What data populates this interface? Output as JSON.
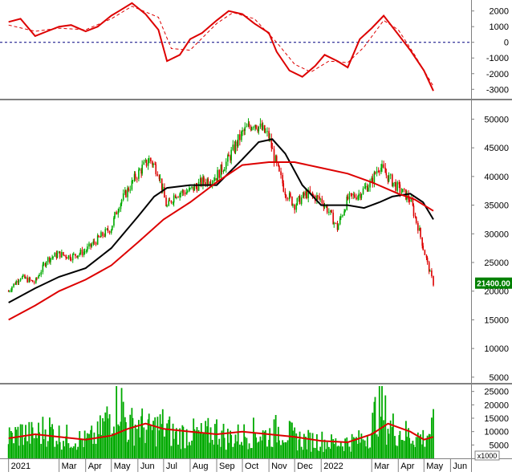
{
  "chart_data": [
    {
      "id": "oscillator",
      "type": "line",
      "title": "",
      "ylim": [
        -3600,
        2700
      ],
      "yticks": [
        2000,
        1000,
        0,
        -1000,
        -2000,
        -3000
      ],
      "zero_line": "dashed",
      "series": [
        {
          "style": "solid",
          "color": "#dd0000",
          "x": [
            "2021-01-01",
            "2021-01-15",
            "2021-02-01",
            "2021-02-15",
            "2021-03-01",
            "2021-03-15",
            "2021-04-01",
            "2021-04-15",
            "2021-05-01",
            "2021-05-10",
            "2021-05-25",
            "2021-06-10",
            "2021-06-25",
            "2021-07-05",
            "2021-07-20",
            "2021-08-01",
            "2021-08-15",
            "2021-09-01",
            "2021-09-15",
            "2021-10-01",
            "2021-10-15",
            "2021-11-01",
            "2021-11-10",
            "2021-11-25",
            "2021-12-10",
            "2021-12-25",
            "2022-01-05",
            "2022-01-20",
            "2022-02-01",
            "2022-02-15",
            "2022-03-01",
            "2022-03-15",
            "2022-04-01",
            "2022-04-15",
            "2022-05-01",
            "2022-05-12"
          ],
          "values": [
            1300,
            1500,
            400,
            700,
            1000,
            1100,
            700,
            1000,
            1700,
            2000,
            2500,
            1800,
            800,
            -1200,
            -800,
            200,
            600,
            1400,
            2000,
            1800,
            1200,
            600,
            -600,
            -1800,
            -2200,
            -1500,
            -800,
            -1200,
            -1600,
            200,
            900,
            1700,
            500,
            -500,
            -1800,
            -3100
          ]
        },
        {
          "style": "dashed",
          "color": "#dd0000",
          "x": [
            "2021-01-01",
            "2021-02-01",
            "2021-03-01",
            "2021-04-01",
            "2021-05-01",
            "2021-05-25",
            "2021-06-25",
            "2021-07-10",
            "2021-08-01",
            "2021-09-01",
            "2021-09-20",
            "2021-10-15",
            "2021-11-10",
            "2021-12-01",
            "2021-12-20",
            "2022-01-10",
            "2022-02-01",
            "2022-02-20",
            "2022-03-15",
            "2022-04-01",
            "2022-04-20",
            "2022-05-12"
          ],
          "values": [
            1100,
            700,
            900,
            800,
            1500,
            2300,
            1600,
            -400,
            -500,
            1200,
            1900,
            1500,
            0,
            -1400,
            -1900,
            -1200,
            -1300,
            -300,
            1400,
            800,
            -800,
            -2800
          ]
        }
      ]
    },
    {
      "id": "price",
      "type": "line",
      "title": "",
      "ylim": [
        4000,
        53000
      ],
      "yticks": [
        50000,
        45000,
        40000,
        35000,
        30000,
        25000,
        20000,
        15000,
        10000,
        5000
      ],
      "last_price_label": "21400.00",
      "last_price": 21400,
      "candles": {
        "color_up": "#00aa00",
        "color_down": "#dd0000",
        "x": [
          "2021-01-01",
          "2021-01-15",
          "2021-02-01",
          "2021-02-15",
          "2021-03-01",
          "2021-03-15",
          "2021-04-01",
          "2021-04-15",
          "2021-05-01",
          "2021-05-10",
          "2021-05-20",
          "2021-06-01",
          "2021-06-15",
          "2021-06-25",
          "2021-07-05",
          "2021-07-15",
          "2021-08-01",
          "2021-08-15",
          "2021-09-01",
          "2021-09-15",
          "2021-10-01",
          "2021-10-15",
          "2021-11-01",
          "2021-11-10",
          "2021-11-20",
          "2021-12-01",
          "2021-12-15",
          "2022-01-01",
          "2022-01-10",
          "2022-01-20",
          "2022-02-01",
          "2022-02-15",
          "2022-03-01",
          "2022-03-10",
          "2022-03-20",
          "2022-04-01",
          "2022-04-15",
          "2022-04-25",
          "2022-05-05",
          "2022-05-12"
        ],
        "close": [
          20000,
          22500,
          21500,
          25500,
          26500,
          26000,
          27000,
          29000,
          31000,
          35000,
          37500,
          40500,
          43000,
          41000,
          34500,
          37000,
          37500,
          39000,
          40000,
          43000,
          47500,
          49500,
          47000,
          42000,
          37500,
          35000,
          37000,
          36000,
          34000,
          31000,
          36000,
          37000,
          39000,
          42000,
          40000,
          38000,
          36000,
          31000,
          25000,
          21400
        ]
      },
      "series": [
        {
          "name": "",
          "color": "#000000",
          "x": [
            "2021-01-01",
            "2021-02-01",
            "2021-03-01",
            "2021-04-01",
            "2021-05-01",
            "2021-06-01",
            "2021-06-20",
            "2021-07-05",
            "2021-08-01",
            "2021-09-01",
            "2021-10-01",
            "2021-10-20",
            "2021-11-05",
            "2021-11-20",
            "2021-12-10",
            "2022-01-01",
            "2022-02-01",
            "2022-02-20",
            "2022-03-10",
            "2022-03-25",
            "2022-04-15",
            "2022-04-30",
            "2022-05-12"
          ],
          "values": [
            18000,
            20500,
            22500,
            24000,
            27500,
            33000,
            36500,
            38000,
            38500,
            38500,
            43000,
            46000,
            46500,
            44000,
            38500,
            35000,
            35000,
            34500,
            35500,
            36500,
            37000,
            35500,
            32500
          ]
        },
        {
          "name": "",
          "color": "#dd0000",
          "x": [
            "2021-01-01",
            "2021-02-01",
            "2021-03-01",
            "2021-04-01",
            "2021-05-01",
            "2021-06-01",
            "2021-07-01",
            "2021-08-01",
            "2021-09-01",
            "2021-10-01",
            "2021-11-01",
            "2021-12-01",
            "2022-01-01",
            "2022-02-01",
            "2022-03-01",
            "2022-04-01",
            "2022-04-20",
            "2022-05-12"
          ],
          "values": [
            15000,
            17500,
            20000,
            22000,
            24500,
            28500,
            32500,
            35500,
            39000,
            42000,
            42500,
            42500,
            41500,
            40500,
            39000,
            37000,
            36000,
            34000
          ]
        }
      ]
    },
    {
      "id": "volume",
      "type": "bar",
      "title": "",
      "ylim": [
        0,
        27000
      ],
      "yticks": [
        25000,
        20000,
        15000,
        10000,
        5000
      ],
      "unit_label": "x1000",
      "bar_color": "#00aa00",
      "x": [
        "2021-01-01",
        "2021-01-15",
        "2021-02-01",
        "2021-02-15",
        "2021-03-01",
        "2021-03-15",
        "2021-04-01",
        "2021-04-15",
        "2021-05-01",
        "2021-05-10",
        "2021-05-20",
        "2021-06-01",
        "2021-06-15",
        "2021-07-01",
        "2021-07-15",
        "2021-08-01",
        "2021-08-15",
        "2021-09-01",
        "2021-09-15",
        "2021-10-01",
        "2021-10-15",
        "2021-11-01",
        "2021-11-15",
        "2021-12-01",
        "2021-12-15",
        "2022-01-01",
        "2022-01-15",
        "2022-02-01",
        "2022-02-15",
        "2022-03-01",
        "2022-03-10",
        "2022-03-20",
        "2022-04-01",
        "2022-04-15",
        "2022-05-01",
        "2022-05-12"
      ],
      "values": [
        8000,
        10000,
        9000,
        12000,
        9000,
        8000,
        7000,
        9000,
        18000,
        26000,
        12000,
        14000,
        11000,
        13000,
        9000,
        10000,
        9000,
        11000,
        8000,
        9000,
        10000,
        9000,
        12000,
        8000,
        7000,
        7000,
        6000,
        6500,
        7000,
        11000,
        23000,
        13000,
        11000,
        9000,
        8000,
        12000
      ],
      "ma_series": {
        "name": "",
        "color": "#dd0000",
        "x": [
          "2021-01-01",
          "2021-02-01",
          "2021-03-01",
          "2021-04-01",
          "2021-05-01",
          "2021-05-20",
          "2021-06-10",
          "2021-07-01",
          "2021-08-01",
          "2021-09-01",
          "2021-10-01",
          "2021-11-01",
          "2021-12-01",
          "2022-01-01",
          "2022-02-01",
          "2022-03-01",
          "2022-03-20",
          "2022-04-15",
          "2022-05-01",
          "2022-05-12"
        ],
        "values": [
          7500,
          9000,
          8000,
          7000,
          8500,
          11000,
          13000,
          11000,
          10000,
          9000,
          10000,
          9000,
          8000,
          6500,
          6000,
          9000,
          13000,
          10000,
          7000,
          8000
        ]
      }
    }
  ],
  "x_axis": {
    "labels": [
      {
        "date": "2021-01-01",
        "text": "2021"
      },
      {
        "date": "2021-03-01",
        "text": "Mar"
      },
      {
        "date": "2021-04-01",
        "text": "Apr"
      },
      {
        "date": "2021-05-01",
        "text": "May"
      },
      {
        "date": "2021-06-01",
        "text": "Jun"
      },
      {
        "date": "2021-07-01",
        "text": "Jul"
      },
      {
        "date": "2021-08-01",
        "text": "Aug"
      },
      {
        "date": "2021-09-01",
        "text": "Sep"
      },
      {
        "date": "2021-10-01",
        "text": "Oct"
      },
      {
        "date": "2021-11-01",
        "text": "Nov"
      },
      {
        "date": "2021-12-01",
        "text": "Dec"
      },
      {
        "date": "2022-01-01",
        "text": "2022"
      },
      {
        "date": "2022-03-01",
        "text": "Mar"
      },
      {
        "date": "2022-04-01",
        "text": "Apr"
      },
      {
        "date": "2022-05-01",
        "text": "May"
      },
      {
        "date": "2022-06-01",
        "text": "Jun"
      }
    ]
  },
  "colors": {
    "grid": "#808080",
    "axis_text": "#000000",
    "label_bg": "#008000",
    "label_fg": "#ffffff"
  }
}
